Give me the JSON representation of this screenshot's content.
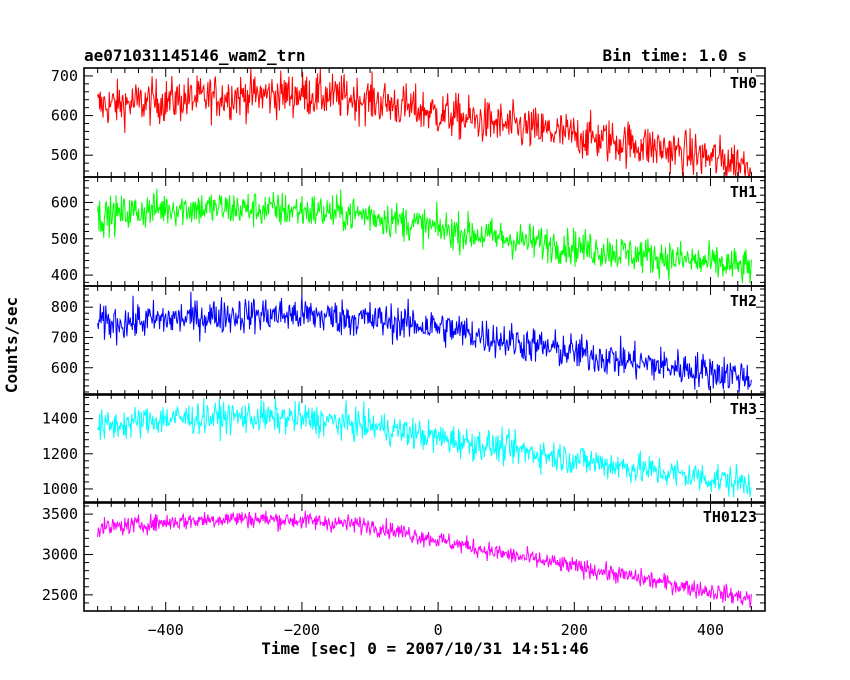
{
  "chart_data": {
    "type": "line",
    "title": "ae071031145146_wam2_trn",
    "bin_label": "Bin time: 1.0 s",
    "xlabel": "Time [sec] 0 = 2007/10/31 14:51:46",
    "ylabel": "Counts/sec",
    "xlim": [
      -520,
      480
    ],
    "x_ticks": [
      -400,
      -200,
      0,
      200,
      400
    ],
    "x_tick_labels": [
      "−400",
      "−200",
      "0",
      "200",
      "400"
    ],
    "x_start": -500,
    "x_end": 460,
    "grid": false,
    "panels": [
      {
        "name": "TH0",
        "color": "#ff0000",
        "ylim": [
          445,
          720
        ],
        "yticks": [
          500,
          600,
          700
        ],
        "profile": [
          [
            -500,
            625
          ],
          [
            -300,
            650
          ],
          [
            -200,
            655
          ],
          [
            -100,
            640
          ],
          [
            0,
            605
          ],
          [
            100,
            575
          ],
          [
            200,
            550
          ],
          [
            300,
            525
          ],
          [
            460,
            475
          ]
        ],
        "noise": 28
      },
      {
        "name": "TH1",
        "color": "#00ff00",
        "ylim": [
          370,
          670
        ],
        "yticks": [
          400,
          500,
          600
        ],
        "profile": [
          [
            -500,
            560
          ],
          [
            -400,
            585
          ],
          [
            -300,
            583
          ],
          [
            -200,
            578
          ],
          [
            -100,
            565
          ],
          [
            0,
            528
          ],
          [
            100,
            500
          ],
          [
            200,
            478
          ],
          [
            300,
            455
          ],
          [
            460,
            420
          ]
        ],
        "noise": 25
      },
      {
        "name": "TH2",
        "color": "#0000ff",
        "ylim": [
          510,
          870
        ],
        "yticks": [
          600,
          700,
          800
        ],
        "profile": [
          [
            -500,
            745
          ],
          [
            -300,
            775
          ],
          [
            -200,
            775
          ],
          [
            -100,
            760
          ],
          [
            0,
            735
          ],
          [
            100,
            690
          ],
          [
            200,
            650
          ],
          [
            300,
            615
          ],
          [
            460,
            570
          ]
        ],
        "noise": 30
      },
      {
        "name": "TH3",
        "color": "#00ffff",
        "ylim": [
          920,
          1540
        ],
        "yticks": [
          1000,
          1200,
          1400
        ],
        "profile": [
          [
            -500,
            1350
          ],
          [
            -400,
            1400
          ],
          [
            -300,
            1410
          ],
          [
            -200,
            1400
          ],
          [
            -100,
            1360
          ],
          [
            0,
            1290
          ],
          [
            100,
            1230
          ],
          [
            200,
            1170
          ],
          [
            300,
            1110
          ],
          [
            460,
            1030
          ]
        ],
        "noise": 45
      },
      {
        "name": "TH0123",
        "color": "#ff00ff",
        "ylim": [
          2300,
          3650
        ],
        "yticks": [
          2500,
          3000,
          3500
        ],
        "profile": [
          [
            -500,
            3320
          ],
          [
            -400,
            3400
          ],
          [
            -300,
            3450
          ],
          [
            -200,
            3420
          ],
          [
            -100,
            3360
          ],
          [
            0,
            3180
          ],
          [
            100,
            3000
          ],
          [
            200,
            2850
          ],
          [
            300,
            2700
          ],
          [
            460,
            2450
          ]
        ],
        "noise": 55
      }
    ]
  }
}
